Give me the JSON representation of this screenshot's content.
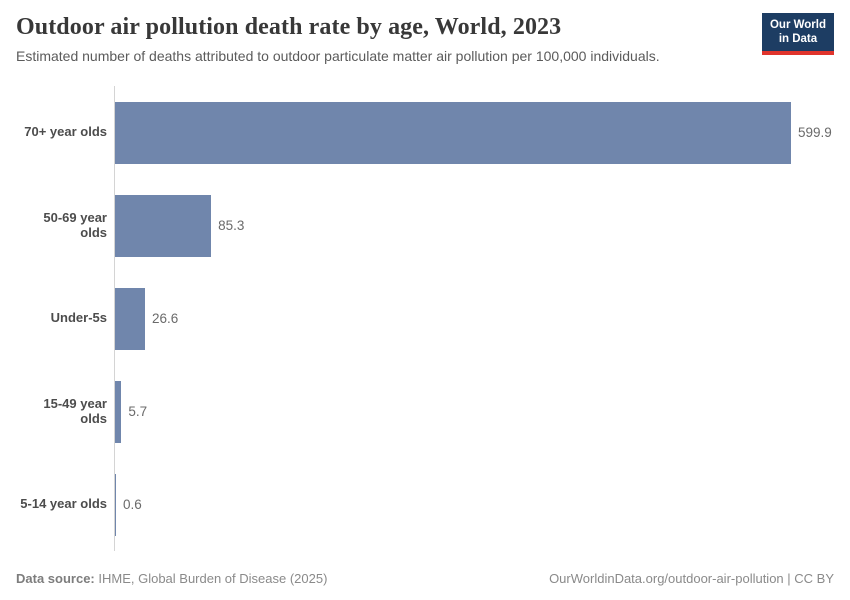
{
  "header": {
    "title": "Outdoor air pollution death rate by age, World, 2023",
    "subtitle": "Estimated number of deaths attributed to outdoor particulate matter air pollution per 100,000 individuals.",
    "logo": {
      "line1": "Our World",
      "line2": "in Data"
    }
  },
  "chart_data": {
    "type": "bar",
    "orientation": "horizontal",
    "title": "Outdoor air pollution death rate by age, World, 2023",
    "xlabel": "",
    "ylabel": "",
    "categories": [
      "70+ year olds",
      "50-69 year olds",
      "Under-5s",
      "15-49 year olds",
      "5-14 year olds"
    ],
    "values": [
      599.9,
      85.3,
      26.6,
      5.7,
      0.6
    ],
    "value_labels": [
      "599.9",
      "85.3",
      "26.6",
      "5.7",
      "0.6"
    ],
    "xlim": [
      0,
      599.9
    ],
    "grid": false,
    "legend": "none",
    "bar_color": "#7086ac",
    "axis_line_color": "#d4d4d4"
  },
  "footer": {
    "data_source_label": "Data source:",
    "data_source_value": " IHME, Global Burden of Disease (2025)",
    "credit": "OurWorldinData.org/outdoor-air-pollution | CC BY"
  }
}
